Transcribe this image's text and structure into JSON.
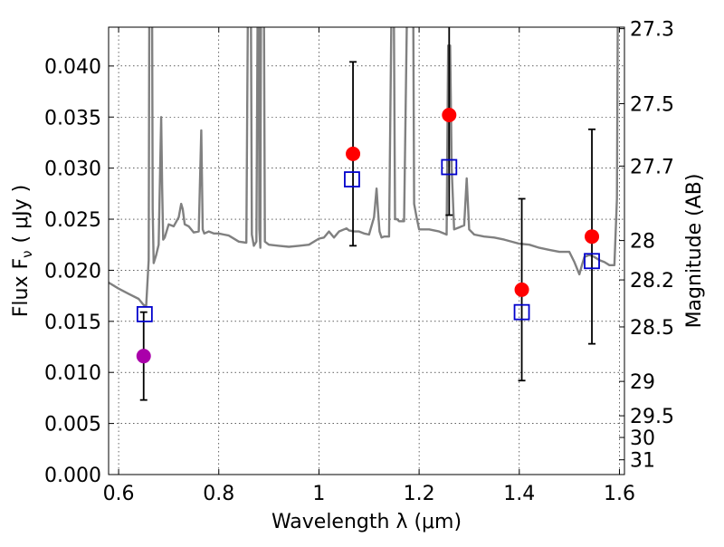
{
  "chart_data": {
    "type": "scatter",
    "xlabel": "Wavelength  λ (μm)",
    "ylabel": "Flux  F",
    "ylabel_sub": "ν",
    "ylabel_unit": "( μJy )",
    "ylabel_right": "Magnitude (AB)",
    "xlim": [
      0.58,
      1.61
    ],
    "ylim": [
      0.0,
      0.0438
    ],
    "grid": true,
    "x_ticks": [
      {
        "value": 0.6,
        "label": "0.6"
      },
      {
        "value": 0.8,
        "label": "0.8"
      },
      {
        "value": 1.0,
        "label": "1"
      },
      {
        "value": 1.2,
        "label": "1.2"
      },
      {
        "value": 1.4,
        "label": "1.4"
      },
      {
        "value": 1.6,
        "label": "1.6"
      }
    ],
    "y_ticks": [
      {
        "value": 0.0,
        "label": "0.000"
      },
      {
        "value": 0.005,
        "label": "0.005"
      },
      {
        "value": 0.01,
        "label": "0.010"
      },
      {
        "value": 0.015,
        "label": "0.015"
      },
      {
        "value": 0.02,
        "label": "0.020"
      },
      {
        "value": 0.025,
        "label": "0.025"
      },
      {
        "value": 0.03,
        "label": "0.030"
      },
      {
        "value": 0.035,
        "label": "0.035"
      },
      {
        "value": 0.04,
        "label": "0.040"
      }
    ],
    "right_ticks": [
      {
        "mag": 27.3,
        "label": "27.3"
      },
      {
        "mag": 27.5,
        "label": "27.5"
      },
      {
        "mag": 27.7,
        "label": "27.7"
      },
      {
        "mag": 28.0,
        "label": "28"
      },
      {
        "mag": 28.2,
        "label": "28.2"
      },
      {
        "mag": 28.5,
        "label": "28.5"
      },
      {
        "mag": 29.0,
        "label": "29"
      },
      {
        "mag": 29.5,
        "label": "29.5"
      },
      {
        "mag": 30.0,
        "label": "30"
      },
      {
        "mag": 31.0,
        "label": "31"
      }
    ],
    "observed": [
      {
        "x": 0.65,
        "y": 0.0116,
        "err": 0.0043,
        "color": "#aa00aa"
      },
      {
        "x": 1.068,
        "y": 0.0314,
        "err": 0.009,
        "color": "#ff0000"
      },
      {
        "x": 1.26,
        "y": 0.0352,
        "err": 0.0098,
        "color": "#ff0000"
      },
      {
        "x": 1.405,
        "y": 0.0181,
        "err": 0.0089,
        "color": "#ff0000"
      },
      {
        "x": 1.545,
        "y": 0.0233,
        "err": 0.0105,
        "color": "#ff0000"
      }
    ],
    "model_points": [
      {
        "x": 0.652,
        "y": 0.0157
      },
      {
        "x": 1.066,
        "y": 0.0289
      },
      {
        "x": 1.26,
        "y": 0.0301
      },
      {
        "x": 1.405,
        "y": 0.0159
      },
      {
        "x": 1.545,
        "y": 0.0209
      }
    ],
    "spectrum": {
      "color": "#808080",
      "x": [
        0.58,
        0.6,
        0.62,
        0.64,
        0.65,
        0.655,
        0.66,
        0.662,
        0.663,
        0.664,
        0.666,
        0.668,
        0.67,
        0.675,
        0.68,
        0.685,
        0.687,
        0.689,
        0.692,
        0.7,
        0.71,
        0.72,
        0.725,
        0.728,
        0.732,
        0.74,
        0.75,
        0.76,
        0.765,
        0.768,
        0.771,
        0.78,
        0.79,
        0.8,
        0.81,
        0.82,
        0.84,
        0.855,
        0.86,
        0.863,
        0.866,
        0.87,
        0.875,
        0.877,
        0.879,
        0.881,
        0.883,
        0.885,
        0.887,
        0.889,
        0.892,
        0.9,
        0.92,
        0.94,
        0.96,
        0.98,
        1.0,
        1.01,
        1.02,
        1.03,
        1.04,
        1.05,
        1.055,
        1.06,
        1.07,
        1.08,
        1.09,
        1.1,
        1.11,
        1.115,
        1.118,
        1.121,
        1.125,
        1.13,
        1.14,
        1.148,
        1.152,
        1.156,
        1.16,
        1.17,
        1.18,
        1.183,
        1.187,
        1.19,
        1.195,
        1.2,
        1.22,
        1.24,
        1.255,
        1.258,
        1.262,
        1.265,
        1.27,
        1.28,
        1.29,
        1.295,
        1.3,
        1.31,
        1.33,
        1.35,
        1.37,
        1.4,
        1.42,
        1.44,
        1.46,
        1.48,
        1.5,
        1.51,
        1.52,
        1.525,
        1.53,
        1.54,
        1.55,
        1.56,
        1.57,
        1.58,
        1.59,
        1.595,
        1.598,
        1.6,
        1.61
      ],
      "y": [
        0.0188,
        0.0182,
        0.0177,
        0.0172,
        0.0166,
        0.0165,
        0.021,
        0.06,
        0.06,
        0.06,
        0.06,
        0.026,
        0.0207,
        0.0215,
        0.0225,
        0.035,
        0.028,
        0.023,
        0.0232,
        0.0245,
        0.0243,
        0.0252,
        0.0265,
        0.026,
        0.0245,
        0.0243,
        0.0237,
        0.0238,
        0.0337,
        0.024,
        0.0236,
        0.0238,
        0.0236,
        0.0236,
        0.0235,
        0.0234,
        0.0228,
        0.0227,
        0.06,
        0.06,
        0.0235,
        0.0224,
        0.0228,
        0.041,
        0.06,
        0.024,
        0.0222,
        0.06,
        0.06,
        0.06,
        0.0228,
        0.0225,
        0.0224,
        0.0223,
        0.0224,
        0.0225,
        0.0231,
        0.0232,
        0.0238,
        0.0232,
        0.0238,
        0.024,
        0.0241,
        0.0239,
        0.0238,
        0.0238,
        0.0236,
        0.0235,
        0.0252,
        0.028,
        0.0258,
        0.0238,
        0.0232,
        0.0233,
        0.0233,
        0.06,
        0.025,
        0.025,
        0.0248,
        0.0248,
        0.06,
        0.06,
        0.06,
        0.0265,
        0.0252,
        0.024,
        0.024,
        0.0238,
        0.0235,
        0.042,
        0.042,
        0.03,
        0.024,
        0.0242,
        0.0244,
        0.029,
        0.024,
        0.0235,
        0.0233,
        0.0232,
        0.023,
        0.0226,
        0.0225,
        0.0222,
        0.022,
        0.0218,
        0.0218,
        0.0208,
        0.0196,
        0.0205,
        0.0213,
        0.0215,
        0.0213,
        0.021,
        0.0208,
        0.0205,
        0.0205,
        0.027,
        0.06,
        0.06,
        0.06
      ]
    }
  }
}
